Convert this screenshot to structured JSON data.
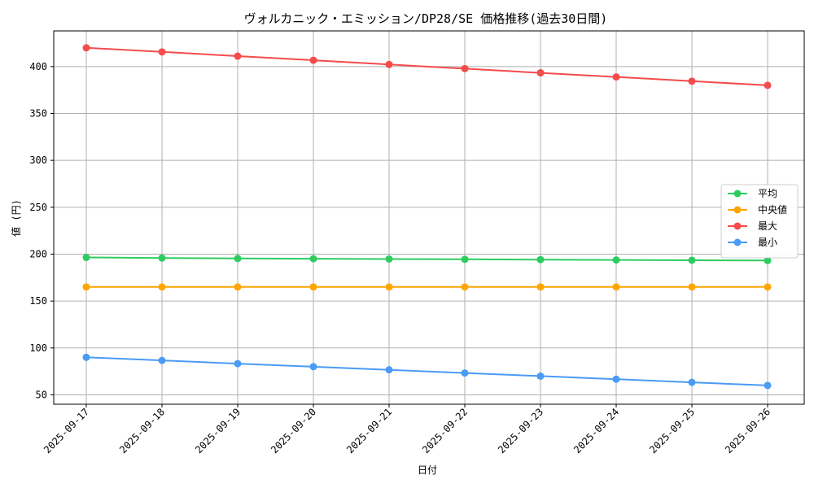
{
  "chart_data": {
    "type": "line",
    "title": "ヴォルカニック・エミッション/DP28/SE 価格推移(過去30日間)",
    "xlabel": "日付",
    "ylabel": "値 (円)",
    "categories": [
      "2025-09-17",
      "2025-09-18",
      "2025-09-19",
      "2025-09-20",
      "2025-09-21",
      "2025-09-22",
      "2025-09-23",
      "2025-09-24",
      "2025-09-25",
      "2025-09-26"
    ],
    "ylim": [
      40,
      438
    ],
    "yticks": [
      50,
      100,
      150,
      200,
      250,
      300,
      350,
      400
    ],
    "grid": true,
    "legend_position": "center-right",
    "series": [
      {
        "name": "平均",
        "color": "#2ecc5f",
        "values": [
          196.5,
          195.9,
          195.4,
          195.1,
          194.8,
          194.5,
          194.2,
          193.8,
          193.5,
          193.2
        ]
      },
      {
        "name": "中央値",
        "color": "#ffa500",
        "values": [
          165,
          165,
          165,
          165,
          165,
          165,
          165,
          165,
          165,
          165
        ]
      },
      {
        "name": "最大",
        "color": "#f44b4b",
        "values": [
          420,
          415.6,
          411.1,
          406.7,
          402.2,
          397.8,
          393.3,
          388.9,
          384.4,
          380
        ]
      },
      {
        "name": "最小",
        "color": "#4a9bf5",
        "values": [
          90,
          86.7,
          83.3,
          80,
          76.7,
          73.3,
          70,
          66.7,
          63.3,
          60
        ]
      }
    ]
  }
}
